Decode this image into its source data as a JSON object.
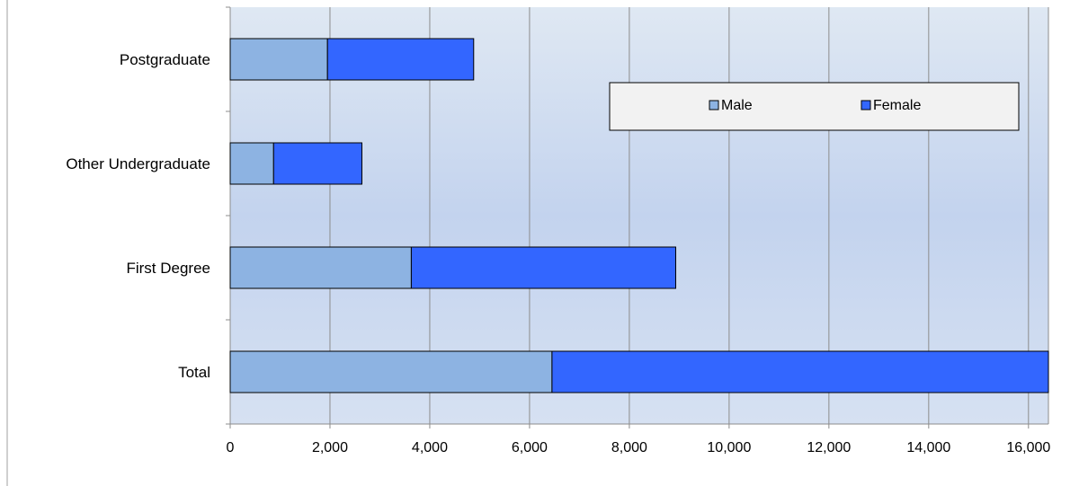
{
  "chart_data": {
    "type": "bar",
    "orientation": "horizontal",
    "stacked": true,
    "categories": [
      "Total",
      "First Degree",
      "Other Undergraduate",
      "Postgraduate"
    ],
    "series": [
      {
        "name": "Male",
        "values": [
          6450,
          3630,
          870,
          1950
        ],
        "color": "#8db3e2"
      },
      {
        "name": "Female",
        "values": [
          9950,
          5300,
          1770,
          2930
        ],
        "color": "#3366ff"
      }
    ],
    "xlim": [
      0,
      16400
    ],
    "xticks": [
      0,
      2000,
      4000,
      6000,
      8000,
      10000,
      12000,
      14000,
      16000
    ],
    "xtick_labels": [
      "0",
      "2,000",
      "4,000",
      "6,000",
      "8,000",
      "10,000",
      "12,000",
      "14,000",
      "16,000"
    ],
    "title": "",
    "xlabel": "",
    "ylabel": "",
    "grid": true,
    "legend": {
      "position": "top-right",
      "entries": [
        "Male",
        "Female"
      ]
    },
    "colors": {
      "plot_bg_top": "#dde7f3",
      "plot_bg_mid": "#c3d3ee",
      "gridline": "#888888",
      "bar_outline": "#000000"
    }
  }
}
